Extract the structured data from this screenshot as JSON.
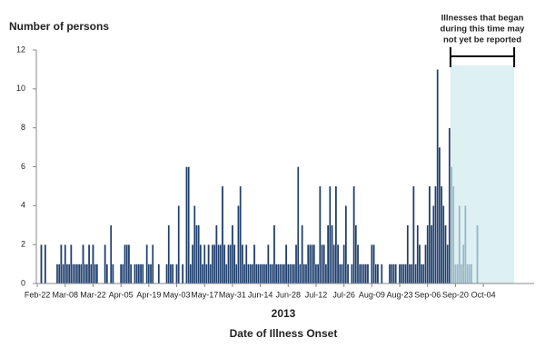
{
  "chart_data": {
    "type": "bar",
    "y_label": "Number of persons",
    "subtitle": "2013",
    "x_label": "Date of Illness Onset",
    "annotation": [
      "Illnesses that began",
      "during this time may",
      "not yet be reported"
    ],
    "highlight_range": [
      208,
      239
    ],
    "highlight_color": "#cfe9ec",
    "color": "#1f3f6e",
    "ylim": [
      0,
      12
    ],
    "yticks": [
      0,
      2,
      4,
      6,
      8,
      10,
      12
    ],
    "grid": false,
    "categories": [
      "Feb-22",
      null,
      null,
      null,
      null,
      null,
      null,
      null,
      null,
      null,
      null,
      null,
      null,
      null,
      "Mar-08",
      null,
      null,
      null,
      null,
      null,
      null,
      null,
      null,
      null,
      null,
      null,
      null,
      null,
      "Mar-22",
      null,
      null,
      null,
      null,
      null,
      null,
      null,
      null,
      null,
      null,
      null,
      null,
      null,
      "Apr-05",
      null,
      null,
      null,
      null,
      null,
      null,
      null,
      null,
      null,
      null,
      null,
      null,
      null,
      "Apr-19",
      null,
      null,
      null,
      null,
      null,
      null,
      null,
      null,
      null,
      null,
      null,
      null,
      null,
      "May-03",
      null,
      null,
      null,
      null,
      null,
      null,
      null,
      null,
      null,
      null,
      null,
      null,
      null,
      "May-17",
      null,
      null,
      null,
      null,
      null,
      null,
      null,
      null,
      null,
      null,
      null,
      null,
      null,
      "May-31",
      null,
      null,
      null,
      null,
      null,
      null,
      null,
      null,
      null,
      null,
      null,
      null,
      null,
      "Jun-14",
      null,
      null,
      null,
      null,
      null,
      null,
      null,
      null,
      null,
      null,
      null,
      null,
      null,
      "Jun-28",
      null,
      null,
      null,
      null,
      null,
      null,
      null,
      null,
      null,
      null,
      null,
      null,
      null,
      "Jul-12",
      null,
      null,
      null,
      null,
      null,
      null,
      null,
      null,
      null,
      null,
      null,
      null,
      null,
      "Jul-26",
      null,
      null,
      null,
      null,
      null,
      null,
      null,
      null,
      null,
      null,
      null,
      null,
      null,
      "Aug-09",
      null,
      null,
      null,
      null,
      null,
      null,
      null,
      null,
      null,
      null,
      null,
      null,
      null,
      "Aug-23",
      null,
      null,
      null,
      null,
      null,
      null,
      null,
      null,
      null,
      null,
      null,
      null,
      null,
      "Sep-06",
      null,
      null,
      null,
      null,
      null,
      null,
      null,
      null,
      null,
      null,
      null,
      null,
      null,
      "Sep-20",
      null,
      null,
      null,
      null,
      null,
      null,
      null,
      null,
      null,
      null,
      null,
      null,
      null,
      "Oct-04",
      null,
      null,
      null,
      null,
      null,
      null,
      null,
      null,
      null,
      null,
      null,
      null,
      null,
      null,
      null,
      null,
      null,
      null,
      null,
      null,
      null,
      null,
      null,
      null,
      null
    ],
    "values": [
      0,
      0,
      2,
      0,
      2,
      0,
      0,
      0,
      0,
      0,
      1,
      1,
      2,
      1,
      2,
      1,
      1,
      2,
      1,
      1,
      1,
      1,
      1,
      2,
      1,
      1,
      2,
      1,
      2,
      1,
      1,
      0,
      0,
      0,
      2,
      1,
      0,
      3,
      1,
      0,
      0,
      0,
      1,
      1,
      2,
      2,
      2,
      1,
      0,
      1,
      1,
      1,
      1,
      1,
      0,
      2,
      1,
      1,
      2,
      0,
      0,
      1,
      0,
      0,
      0,
      1,
      3,
      1,
      1,
      0,
      1,
      4,
      0,
      1,
      0,
      6,
      6,
      1,
      2,
      4,
      3,
      3,
      2,
      1,
      2,
      1,
      2,
      1,
      2,
      2,
      3,
      2,
      2,
      5,
      2,
      1,
      2,
      2,
      3,
      2,
      1,
      4,
      5,
      2,
      1,
      2,
      1,
      1,
      1,
      2,
      1,
      1,
      1,
      1,
      1,
      1,
      2,
      1,
      1,
      3,
      1,
      1,
      1,
      1,
      1,
      2,
      1,
      1,
      1,
      1,
      2,
      6,
      1,
      3,
      1,
      1,
      2,
      2,
      2,
      2,
      1,
      1,
      5,
      2,
      2,
      1,
      3,
      5,
      3,
      2,
      5,
      2,
      1,
      1,
      2,
      4,
      1,
      0,
      1,
      5,
      3,
      2,
      1,
      1,
      1,
      1,
      1,
      0,
      2,
      2,
      1,
      1,
      0,
      1,
      0,
      0,
      0,
      1,
      1,
      1,
      1,
      0,
      1,
      1,
      1,
      1,
      3,
      1,
      1,
      5,
      1,
      3,
      2,
      1,
      1,
      2,
      3,
      5,
      3,
      4,
      5,
      11,
      7,
      5,
      4,
      3,
      2,
      8,
      6,
      5,
      1,
      1,
      4,
      1,
      2,
      4,
      1,
      1,
      1,
      0,
      0,
      3,
      0,
      0,
      0,
      0,
      0,
      0,
      0,
      0,
      0,
      0,
      0,
      0,
      0,
      0,
      0,
      0,
      0,
      0,
      0,
      0,
      0,
      0,
      0,
      0,
      0,
      0,
      0,
      0
    ]
  }
}
